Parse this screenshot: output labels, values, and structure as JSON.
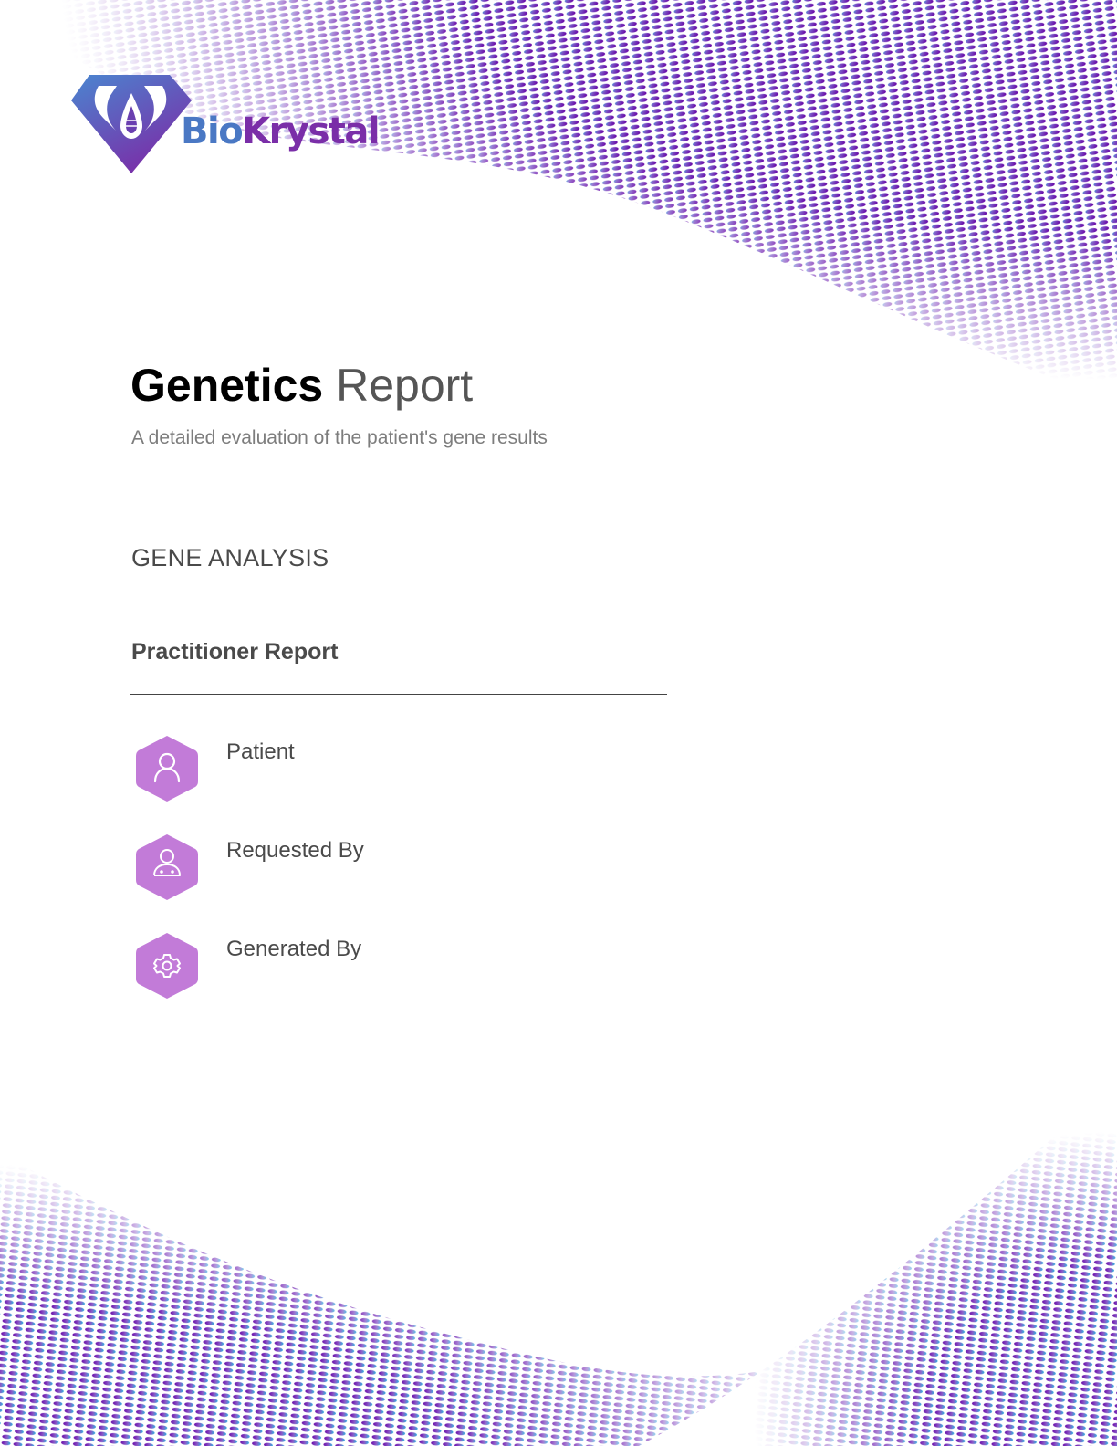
{
  "brand": {
    "name_part1": "Bio",
    "name_part2": "Krystal",
    "colors": {
      "blue": "#4a78c4",
      "purple": "#7a2ea8",
      "icon_purple": "#c27bd8"
    }
  },
  "header": {
    "title_bold": "Genetics",
    "title_light": "Report",
    "subtitle": "A detailed evaluation of the patient's gene results"
  },
  "section": {
    "heading": "GENE ANALYSIS",
    "report_type": "Practitioner Report"
  },
  "fields": [
    {
      "label": "Patient",
      "icon": "person-icon"
    },
    {
      "label": "Requested By",
      "icon": "doctor-icon"
    },
    {
      "label": "Generated By",
      "icon": "gear-icon"
    }
  ]
}
